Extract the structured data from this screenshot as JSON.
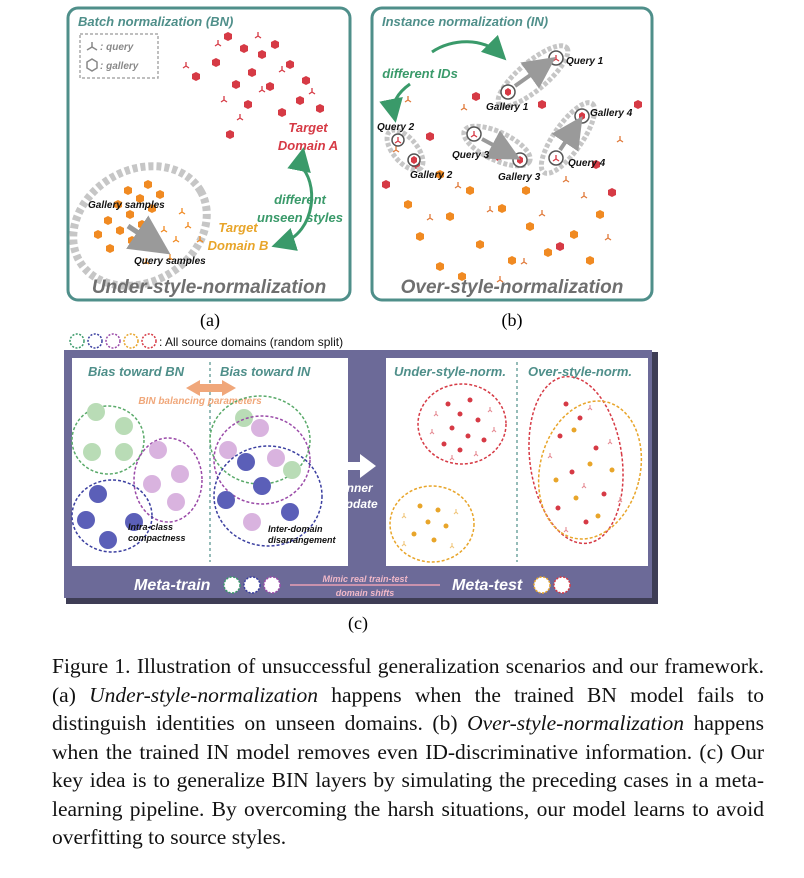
{
  "panel_a": {
    "title": "Batch normalization (BN)",
    "legend_query": ": query",
    "legend_gallery": ": gallery",
    "target_a_line1": "Target",
    "target_a_line2": "Domain A",
    "target_b_line1": "Target",
    "target_b_line2": "Domain B",
    "arrow_line1": "different",
    "arrow_line2": "unseen styles",
    "gallery_samples": "Gallery samples",
    "query_samples": "Query samples",
    "footer": "Under-style-normalization",
    "sublabel": "(a)"
  },
  "panel_b": {
    "title": "Instance normalization (IN)",
    "different_ids": "different IDs",
    "query1": "Query 1",
    "query2": "Query 2",
    "query3": "Query 3",
    "query4": "Query 4",
    "gallery1": "Gallery 1",
    "gallery2": "Gallery 2",
    "gallery3": "Gallery 3",
    "gallery4": "Gallery 4",
    "footer": "Over-style-normalization",
    "sublabel": "(b)"
  },
  "panel_c": {
    "domains_note": ": All source domains (random split)",
    "bias_bn": "Bias toward BN",
    "bias_in": "Bias toward IN",
    "bin_params": "BIN balancing parameters",
    "intra_line1": "Intra-class",
    "intra_line2": "compactness",
    "inter_line1": "Inter-domain",
    "inter_line2": "disarrangement",
    "inner_line1": "inner",
    "inner_line2": "update",
    "under_norm": "Under-style-norm.",
    "over_norm": "Over-style-norm.",
    "meta_train": "Meta-train",
    "meta_test": "Meta-test",
    "mimic_line1": "Mimic real train-test",
    "mimic_line2": "domain shifts",
    "sublabel": "(c)"
  },
  "caption": {
    "figure_label": "Figure 1.",
    "intro": "Illustration of unsuccessful generalization scenarios and our framework. (a)",
    "term_a": "Under-style-normalization",
    "text_a": "happens when the trained BN model fails to distinguish identities on unseen domains. (b)",
    "term_b": "Over-style-normalization",
    "text_b": "happens when the trained IN model removes even ID-discriminative information. (c) Our key idea is to generalize BIN layers by simulating the preceding cases in a meta-learning pipeline. By overcoming the harsh situations, our model learns to avoid overfitting to source styles."
  },
  "colors": {
    "teal": "#4f8f8a",
    "green_text": "#3a9a6a",
    "red": "#d63a45",
    "orange": "#f08a22",
    "yellow_text": "#e8a52a",
    "purple_panel": "#6c6a98"
  }
}
